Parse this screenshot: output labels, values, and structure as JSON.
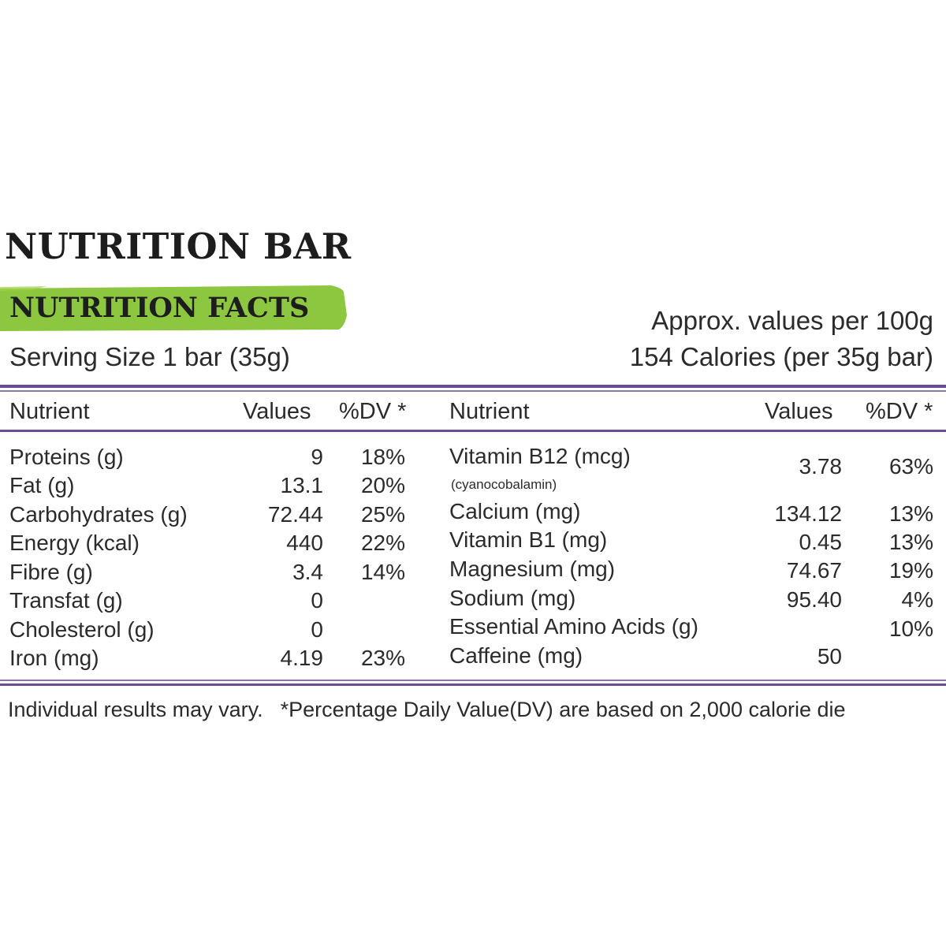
{
  "title": "NUTRITION BAR",
  "facts_label": "NUTRITION FACTS",
  "serving_size": "Serving Size 1 bar (35g)",
  "approx_values": "Approx. values per 100g",
  "calories": "154 Calories (per 35g bar)",
  "colors": {
    "accent_green": "#8dc63f",
    "rule_purple": "#6a4c93",
    "text": "#2b2b2b"
  },
  "left_table": {
    "headers": {
      "nutrient": "Nutrient",
      "values": "Values",
      "dv": "%DV *"
    },
    "rows": [
      {
        "nutrient": "Proteins (g)",
        "value": "9",
        "dv": "18%"
      },
      {
        "nutrient": "Fat (g)",
        "value": "13.1",
        "dv": "20%"
      },
      {
        "nutrient": "Carbohydrates (g)",
        "value": "72.44",
        "dv": "25%"
      },
      {
        "nutrient": "Energy (kcal)",
        "value": "440",
        "dv": "22%"
      },
      {
        "nutrient": "Fibre (g)",
        "value": "3.4",
        "dv": "14%"
      },
      {
        "nutrient": "Transfat (g)",
        "value": "0",
        "dv": ""
      },
      {
        "nutrient": "Cholesterol (g)",
        "value": "0",
        "dv": ""
      },
      {
        "nutrient": "Iron (mg)",
        "value": "4.19",
        "dv": "23%"
      }
    ]
  },
  "right_table": {
    "headers": {
      "nutrient": "Nutrient",
      "values": "Values",
      "dv": "%DV *"
    },
    "rows": [
      {
        "nutrient": "Vitamin B12 (mcg)",
        "sub": "(cyanocobalamin)",
        "value": "3.78",
        "dv": "63%"
      },
      {
        "nutrient": "Calcium (mg)",
        "value": "134.12",
        "dv": "13%"
      },
      {
        "nutrient": "Vitamin B1 (mg)",
        "value": "0.45",
        "dv": "13%"
      },
      {
        "nutrient": "Magnesium (mg)",
        "value": "74.67",
        "dv": "19%"
      },
      {
        "nutrient": "Sodium (mg)",
        "value": "95.40",
        "dv": "4%"
      },
      {
        "nutrient": "Essential Amino Acids (g)",
        "value": "",
        "dv": "10%"
      },
      {
        "nutrient": "Caffeine (mg)",
        "value": "50",
        "dv": ""
      }
    ]
  },
  "footer": {
    "vary": "Individual results may vary.",
    "dv_note": "*Percentage Daily Value(DV) are based on 2,000 calorie die"
  }
}
